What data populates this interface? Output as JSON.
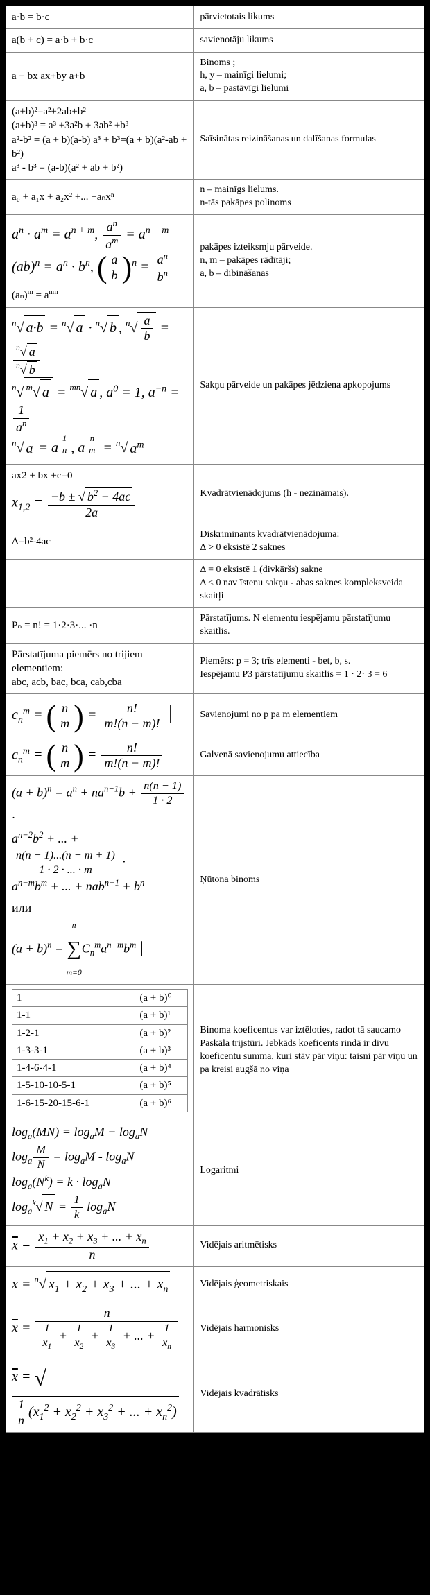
{
  "rows": [
    {
      "left": "a·b = b·c",
      "right": "pārvietotais likums"
    },
    {
      "left": "a(b + c) = a·b + b·c",
      "right": "savienotāju likums"
    },
    {
      "left": "a + bx  ax+by  a+b",
      "right": "Binoms ;\nh, y – mainīgi lielumi;\na, b – pastāvīgi lielumi"
    },
    {
      "left": "(a±b)²=a²±2ab+b²\n(a±b)³ = a³ ±3a²b + 3ab² ±b³\na²-b² = (a + b)(a-b) a³ + b³=(a + b)(a²-ab + b²)\na³ - b³ = (a-b)(a² + ab + b²)",
      "right": "Saīsinātas reizināšanas un dalīšanas formulas"
    },
    {
      "left": "a₀ + a₁x + a₂x² +... +aₙxⁿ",
      "right": "n – mainīgs lielums.\nn-tās pakāpes polinoms"
    },
    {
      "left": "POWERS",
      "right": "pakāpes izteiksmju pārveide.\nn, m – pakāpes rādītāji;\na, b – dibināšanas"
    },
    {
      "left": "ROOTS",
      "right": "Sakņu pārveide un pakāpes jēdziena apkopojums"
    },
    {
      "left": "QUADRATIC",
      "right": "Kvadrātvienādojums (h - nezināmais)."
    },
    {
      "left": "Δ=b²-4ac",
      "right": "Diskriminants kvadrātvienādojuma:\nΔ > 0 eksistē 2 saknes"
    },
    {
      "left": "",
      "right": "Δ = 0 eksistē 1 (divkāršs) sakne\nΔ < 0 nav īstenu sakņu - abas saknes kompleksveida skaitļi"
    },
    {
      "left": "Pₙ = n! = 1·2·3·... ·n",
      "right": "Pārstatījums. N elementu iespējamu pārstatījumu skaitlis."
    },
    {
      "left": "Pārstatījuma piemērs no trijiem elementiem:\nabc, acb, bac, bca, cab,cba",
      "right": "Piemērs: p = 3; trīs elementi - bet, b, s.\nIespējamu P3 pārstatījumu skaitlis = 1 · 2· 3 = 6"
    },
    {
      "left": "COMB1",
      "right": "Savienojumi no p pa m elementiem"
    },
    {
      "left": "COMB2",
      "right": "Galvenā savienojumu attiecība"
    },
    {
      "left": "NEWTON",
      "right": "Ņūtona binoms"
    },
    {
      "left": "PASCAL",
      "right": "Binoma koeficentus var iztēloties, radot tā saucamo Paskāla trijstūri. Jebkāds koeficents rindā ir divu koeficentu summa, kuri stāv pār viņu: taisni pār viņu un pa kreisi augšā no viņa"
    },
    {
      "left": "LOGS",
      "right": "Logaritmi"
    },
    {
      "left": "MEAN_ARITH",
      "right": "Vidējais aritmētisks"
    },
    {
      "left": "MEAN_GEOM",
      "right": "Vidējais ģeometriskais"
    },
    {
      "left": "MEAN_HARM",
      "right": "Vidējais harmonisks"
    },
    {
      "left": "MEAN_QUAD",
      "right": "Vidējais kvadrātisks"
    }
  ],
  "pascal": {
    "rows": [
      [
        "1",
        "(a + b)⁰"
      ],
      [
        "1-1",
        "(a + b)¹"
      ],
      [
        "1-2-1",
        "(a + b)²"
      ],
      [
        "1-3-3-1",
        "(a + b)³"
      ],
      [
        "1-4-6-4-1",
        "(a + b)⁴"
      ],
      [
        "1-5-10-10-5-1",
        "(a + b)⁵"
      ],
      [
        "1-6-15-20-15-6-1",
        "(a + b)⁶"
      ]
    ]
  }
}
